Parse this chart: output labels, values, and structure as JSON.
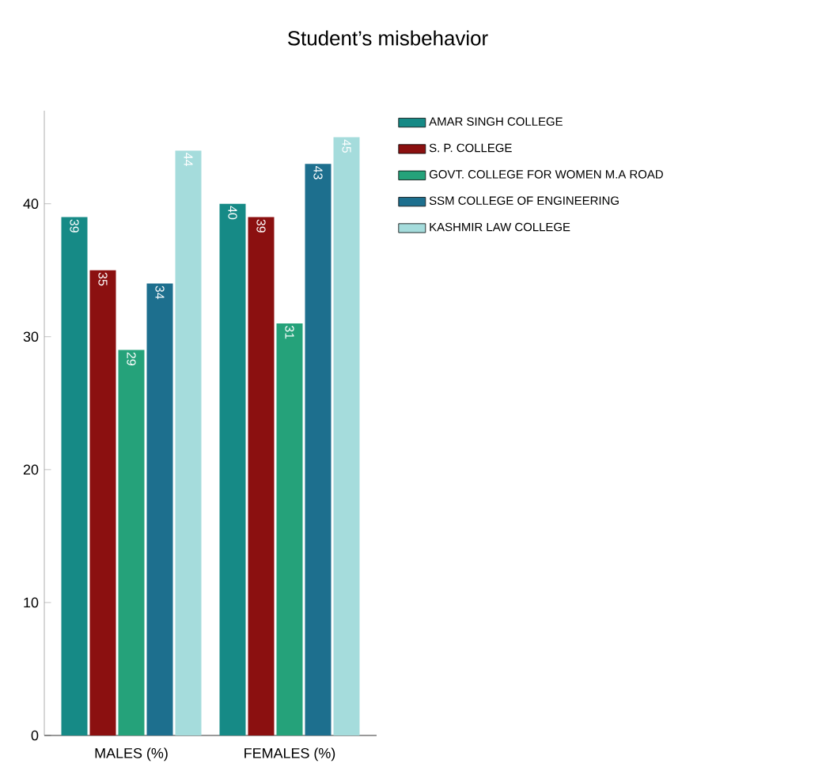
{
  "chart_data": {
    "type": "bar",
    "title": "Student’s misbehavior",
    "categories": [
      "MALES (%)",
      "FEMALES (%)"
    ],
    "series": [
      {
        "name": "AMAR SINGH COLLEGE",
        "color": "#168a86",
        "values": [
          39,
          40
        ]
      },
      {
        "name": "S. P. COLLEGE",
        "color": "#8b1010",
        "values": [
          35,
          39
        ]
      },
      {
        "name": "GOVT. COLLEGE FOR WOMEN M.A ROAD",
        "color": "#25a27a",
        "values": [
          29,
          31
        ]
      },
      {
        "name": "SSM COLLEGE OF ENGINEERING",
        "color": "#1d6f8e",
        "values": [
          34,
          43
        ]
      },
      {
        "name": "KASHMIR LAW COLLEGE",
        "color": "#a5dcdc",
        "values": [
          44,
          45
        ]
      }
    ],
    "ylim": [
      0,
      47
    ],
    "yticks": [
      0,
      10,
      20,
      30,
      40
    ],
    "data_labels": true,
    "legend": "right"
  }
}
